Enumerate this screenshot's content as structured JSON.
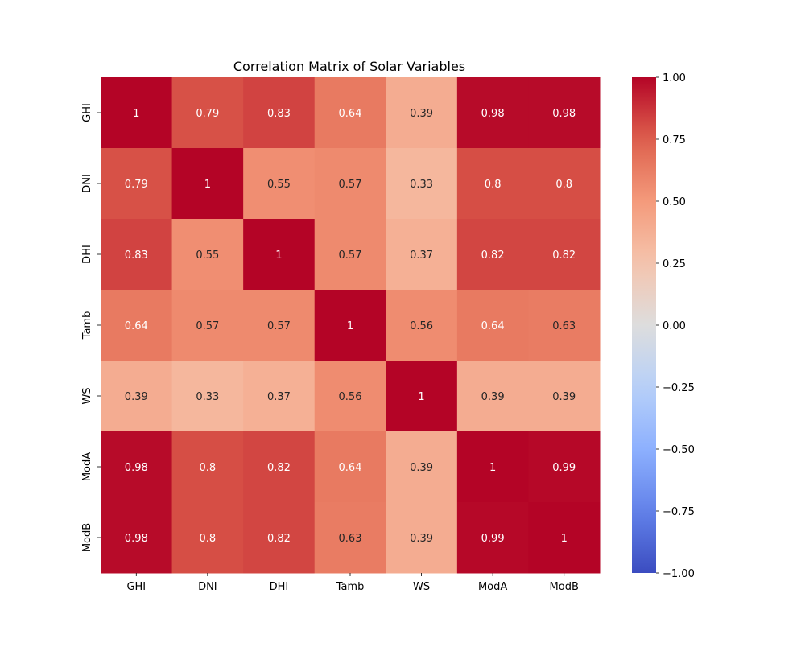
{
  "chart_data": {
    "type": "heatmap",
    "title": "Correlation Matrix of Solar Variables",
    "xlabel": "",
    "ylabel": "",
    "x_categories": [
      "GHI",
      "DNI",
      "DHI",
      "Tamb",
      "WS",
      "ModA",
      "ModB"
    ],
    "y_categories": [
      "GHI",
      "DNI",
      "DHI",
      "Tamb",
      "WS",
      "ModA",
      "ModB"
    ],
    "values": [
      [
        1,
        0.79,
        0.83,
        0.64,
        0.39,
        0.98,
        0.98
      ],
      [
        0.79,
        1,
        0.55,
        0.57,
        0.33,
        0.8,
        0.8
      ],
      [
        0.83,
        0.55,
        1,
        0.57,
        0.37,
        0.82,
        0.82
      ],
      [
        0.64,
        0.57,
        0.57,
        1,
        0.56,
        0.64,
        0.63
      ],
      [
        0.39,
        0.33,
        0.37,
        0.56,
        1,
        0.39,
        0.39
      ],
      [
        0.98,
        0.8,
        0.82,
        0.64,
        0.39,
        1,
        0.99
      ],
      [
        0.98,
        0.8,
        0.82,
        0.63,
        0.39,
        0.99,
        1
      ]
    ],
    "colormap": "coolwarm",
    "vmin": -1,
    "vmax": 1,
    "colorbar_ticks": [
      "1.00",
      "0.75",
      "0.50",
      "0.25",
      "0.00",
      "−0.25",
      "−0.50",
      "−0.75",
      "−1.00"
    ],
    "annotated": true,
    "grid": false
  }
}
